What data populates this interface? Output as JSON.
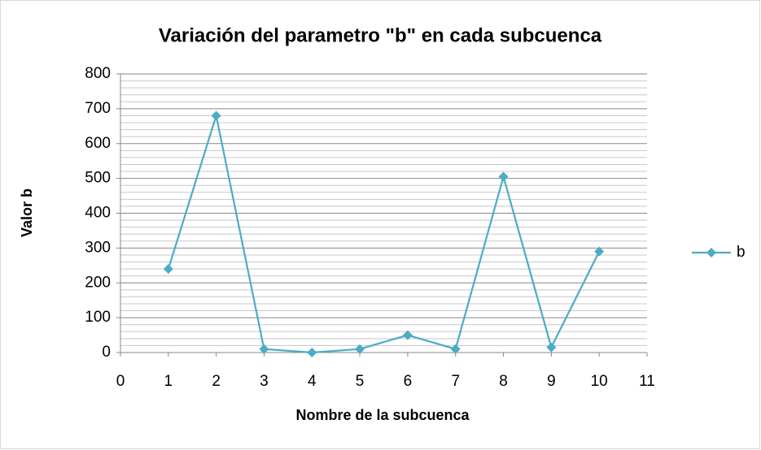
{
  "chart_data": {
    "type": "line",
    "title": "Variación del parametro \"b\" en cada subcuenca",
    "x_label": "Nombre de la subcuenca",
    "y_label": "Valor b",
    "x": [
      1,
      2,
      3,
      4,
      5,
      6,
      7,
      8,
      9,
      10
    ],
    "series": [
      {
        "name": "b",
        "color": "#4bacc6",
        "values": [
          240,
          680,
          10,
          0,
          10,
          50,
          10,
          505,
          15,
          290
        ]
      }
    ],
    "xlim": [
      0,
      11
    ],
    "xticks": [
      0,
      1,
      2,
      3,
      4,
      5,
      6,
      7,
      8,
      9,
      10,
      11
    ],
    "ylim": [
      0,
      800
    ],
    "yticks": [
      0,
      100,
      200,
      300,
      400,
      500,
      600,
      700,
      800
    ],
    "minor_yticks": [
      20,
      40,
      60,
      80,
      120,
      140,
      160,
      180,
      220,
      240,
      260,
      280,
      320,
      340,
      360,
      380,
      420,
      440,
      460,
      480,
      520,
      540,
      560,
      580,
      620,
      640,
      660,
      680,
      720,
      740,
      760,
      780
    ],
    "grid": true,
    "legend": "right"
  }
}
